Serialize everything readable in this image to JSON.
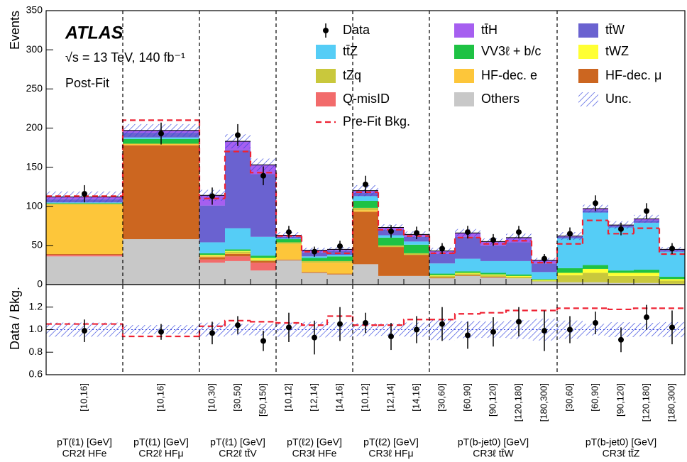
{
  "chart_data": {
    "type": "stacked_histogram",
    "ylabel": "Events",
    "ylim": [
      0,
      350
    ],
    "yticks": [
      0,
      50,
      100,
      150,
      200,
      250,
      300,
      350
    ],
    "annotations": {
      "experiment": "ATLAS",
      "energy": "√s = 13 TeV, 140 fb⁻¹",
      "fit": "Post-Fit"
    },
    "regions": [
      {
        "variable": "pT(ℓ1) [GeV]",
        "name": "CR2ℓ HFe",
        "categories": [
          "[10,16]"
        ]
      },
      {
        "variable": "pT(ℓ1) [GeV]",
        "name": "CR2ℓ HFμ",
        "categories": [
          "[10,16]"
        ]
      },
      {
        "variable": "pT(ℓ1) [GeV]",
        "name": "CR2ℓ tt̄V",
        "categories": [
          "[10,30]",
          "[30,50]",
          "[50,150]"
        ]
      },
      {
        "variable": "pT(ℓ2) [GeV]",
        "name": "CR3ℓ HFe",
        "categories": [
          "[10,12]",
          "[12,14]",
          "[14,16]"
        ]
      },
      {
        "variable": "pT(ℓ2) [GeV]",
        "name": "CR3ℓ HFμ",
        "categories": [
          "[10,12]",
          "[12,14]",
          "[14,16]"
        ]
      },
      {
        "variable": "pT(b-jet0) [GeV]",
        "name": "CR3ℓ tt̄W",
        "categories": [
          "[30,60]",
          "[60,90]",
          "[90,120]",
          "[120,180]",
          "[180,300]"
        ]
      },
      {
        "variable": "pT(b-jet0) [GeV]",
        "name": "CR3ℓ tt̄Z",
        "categories": [
          "[30,60]",
          "[60,90]",
          "[90,120]",
          "[120,180]",
          "[180,300]"
        ]
      }
    ],
    "series": [
      {
        "name": "Others",
        "color": "#c8c8c8",
        "values": [
          36,
          58,
          28,
          30,
          18,
          31,
          15,
          13,
          26,
          11,
          11,
          8,
          11,
          9,
          8,
          4,
          3,
          3,
          2,
          2,
          1
        ]
      },
      {
        "name": "Q-misID",
        "color": "#f26b6b",
        "values": [
          2,
          0,
          4,
          6,
          10,
          0,
          0,
          0,
          0,
          0,
          0,
          0,
          0,
          0,
          0,
          0,
          0,
          0,
          0,
          0,
          0
        ]
      },
      {
        "name": "HF-dec. μ",
        "color": "#cc6620",
        "values": [
          1,
          120,
          3,
          3,
          2,
          1,
          1,
          1,
          67,
          37,
          27,
          1,
          1,
          1,
          0,
          0,
          0,
          0,
          0,
          0,
          0
        ]
      },
      {
        "name": "HF-dec. e",
        "color": "#fdc63a",
        "values": [
          64,
          2,
          1,
          1,
          0,
          20,
          12,
          14,
          2,
          0,
          0,
          0,
          0,
          0,
          0,
          0,
          0,
          0,
          0,
          0,
          0
        ]
      },
      {
        "name": "tZq",
        "color": "#c9c83c",
        "values": [
          0,
          0,
          1,
          2,
          2,
          2,
          2,
          2,
          3,
          2,
          2,
          2,
          2,
          2,
          2,
          1,
          9,
          12,
          9,
          9,
          4
        ]
      },
      {
        "name": "tWZ",
        "color": "#ffff33",
        "values": [
          0,
          0,
          1,
          1,
          2,
          0,
          0,
          0,
          0,
          0,
          0,
          1,
          1,
          1,
          1,
          1,
          3,
          5,
          4,
          4,
          2
        ]
      },
      {
        "name": "VV3ℓ + b/c",
        "color": "#1ec244",
        "values": [
          1,
          6,
          2,
          2,
          3,
          4,
          4,
          6,
          9,
          10,
          11,
          2,
          2,
          2,
          2,
          1,
          6,
          5,
          3,
          4,
          3
        ]
      },
      {
        "name": "tt̄Z",
        "color": "#55cdf6",
        "values": [
          1,
          2,
          14,
          27,
          24,
          1,
          2,
          2,
          6,
          3,
          4,
          13,
          16,
          15,
          17,
          9,
          38,
          67,
          55,
          60,
          32
        ]
      },
      {
        "name": "tt̄W",
        "color": "#6a62d0",
        "values": [
          4,
          6,
          47,
          100,
          80,
          2,
          5,
          5,
          4,
          7,
          6,
          12,
          28,
          20,
          24,
          11,
          2,
          3,
          2,
          3,
          2
        ]
      },
      {
        "name": "tt̄H",
        "color": "#a65ff0",
        "values": [
          3,
          3,
          13,
          11,
          12,
          2,
          3,
          2,
          3,
          3,
          3,
          4,
          5,
          5,
          6,
          4,
          1,
          2,
          1,
          2,
          1
        ]
      }
    ],
    "data": {
      "name": "Data",
      "color": "#000000",
      "values": [
        116,
        193,
        113,
        191,
        139,
        67,
        42,
        49,
        128,
        68,
        66,
        46,
        67,
        57,
        67,
        33,
        65,
        104,
        71,
        94,
        46
      ],
      "errors": [
        11,
        14,
        11,
        14,
        12,
        8,
        6.5,
        7,
        11,
        8,
        8,
        7,
        8,
        7.5,
        8,
        6,
        8,
        10,
        8,
        10,
        7
      ]
    },
    "uncertainty": {
      "name": "Unc.",
      "color": "#3344dd",
      "values": [
        7,
        8,
        7,
        9,
        8,
        4,
        3,
        3,
        7,
        4,
        4,
        4,
        5,
        4,
        5,
        3,
        5,
        5,
        5,
        5,
        3
      ]
    },
    "prefit": {
      "name": "Pre-Fit Bkg.",
      "color": "#ee2233",
      "values": [
        113,
        210,
        110,
        170,
        143,
        62,
        42,
        40,
        118,
        70,
        62,
        40,
        60,
        52,
        56,
        28,
        52,
        82,
        65,
        72,
        39
      ]
    },
    "ratio": {
      "ylabel": "Data / Bkg.",
      "ylim": [
        0.6,
        1.4
      ],
      "yticks": [
        0.6,
        0.8,
        {
          "value": 1,
          "label": "1.0"
        },
        1.2
      ],
      "values": [
        0.99,
        0.98,
        0.97,
        1.04,
        0.9,
        1.02,
        0.93,
        1.05,
        1.06,
        0.94,
        1.0,
        1.05,
        0.95,
        0.98,
        1.07,
        0.99,
        1.0,
        1.06,
        0.91,
        1.11,
        1.02
      ],
      "errors": [
        0.1,
        0.07,
        0.1,
        0.08,
        0.09,
        0.13,
        0.15,
        0.15,
        0.09,
        0.12,
        0.12,
        0.15,
        0.12,
        0.13,
        0.13,
        0.18,
        0.12,
        0.1,
        0.11,
        0.11,
        0.15
      ],
      "prefit": [
        1.05,
        0.94,
        1.03,
        1.08,
        1.07,
        1.06,
        1.04,
        1.12,
        1.04,
        1.04,
        1.09,
        1.09,
        1.14,
        1.15,
        1.17,
        1.17,
        1.19,
        1.19,
        1.18,
        1.19,
        1.19
      ]
    }
  }
}
